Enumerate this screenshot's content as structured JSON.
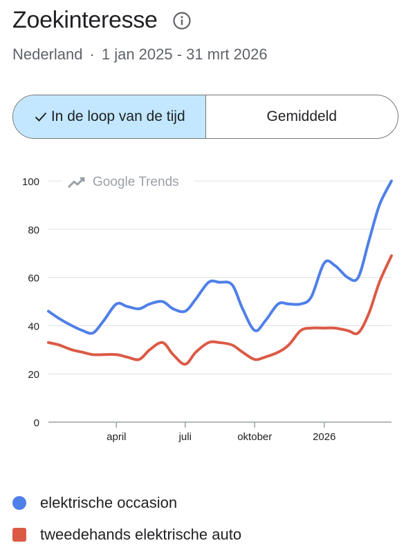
{
  "header": {
    "title": "Zoekinteresse",
    "region": "Nederland",
    "separator": "·",
    "date_range": "1 jan 2025 - 31 mrt 2026"
  },
  "toggle": {
    "over_time_label": "In de loop van de tijd",
    "average_label": "Gemiddeld",
    "selected": "over_time"
  },
  "watermark": "Google Trends",
  "colors": {
    "series1": "#4f7fe8",
    "series2": "#db5a45",
    "active_toggle": "#c2e7ff",
    "grid": "#e0e0e0"
  },
  "icons": {
    "info": "info-icon",
    "check": "check-icon",
    "watermark": "trends-arrow-icon"
  },
  "chart_data": {
    "type": "line",
    "ylim": [
      0,
      100
    ],
    "yticks": [
      0,
      20,
      40,
      60,
      80,
      100
    ],
    "grid": true,
    "xaxis_labels": [
      {
        "label": "april",
        "date": "2025-04-01"
      },
      {
        "label": "juli",
        "date": "2025-07-01"
      },
      {
        "label": "oktober",
        "date": "2025-10-01"
      },
      {
        "label": "2026",
        "date": "2026-01-01"
      }
    ],
    "x": [
      "2025-01-01",
      "2025-01-15",
      "2025-02-01",
      "2025-02-15",
      "2025-03-01",
      "2025-03-15",
      "2025-04-01",
      "2025-04-15",
      "2025-05-01",
      "2025-05-15",
      "2025-06-01",
      "2025-06-15",
      "2025-07-01",
      "2025-07-15",
      "2025-08-01",
      "2025-08-15",
      "2025-09-01",
      "2025-09-15",
      "2025-10-01",
      "2025-10-15",
      "2025-11-01",
      "2025-11-15",
      "2025-12-01",
      "2025-12-15",
      "2026-01-01",
      "2026-01-15",
      "2026-02-01",
      "2026-02-15",
      "2026-03-01",
      "2026-03-15",
      "2026-03-31"
    ],
    "series": [
      {
        "name": "elektrische occasion",
        "color": "#4f7fe8",
        "values": [
          46,
          43,
          40,
          38,
          37,
          42,
          49,
          48,
          47,
          49,
          50,
          47,
          46,
          51,
          58,
          58,
          57,
          47,
          38,
          42,
          49,
          49,
          49,
          52,
          66,
          65,
          60,
          60,
          75,
          90,
          100
        ]
      },
      {
        "name": "tweedehands elektrische auto",
        "color": "#db5a45",
        "values": [
          33,
          32,
          30,
          29,
          28,
          28,
          28,
          27,
          26,
          30,
          33,
          28,
          24,
          29,
          33,
          33,
          32,
          29,
          26,
          27,
          29,
          32,
          38,
          39,
          39,
          39,
          38,
          37,
          45,
          58,
          69
        ]
      }
    ]
  }
}
